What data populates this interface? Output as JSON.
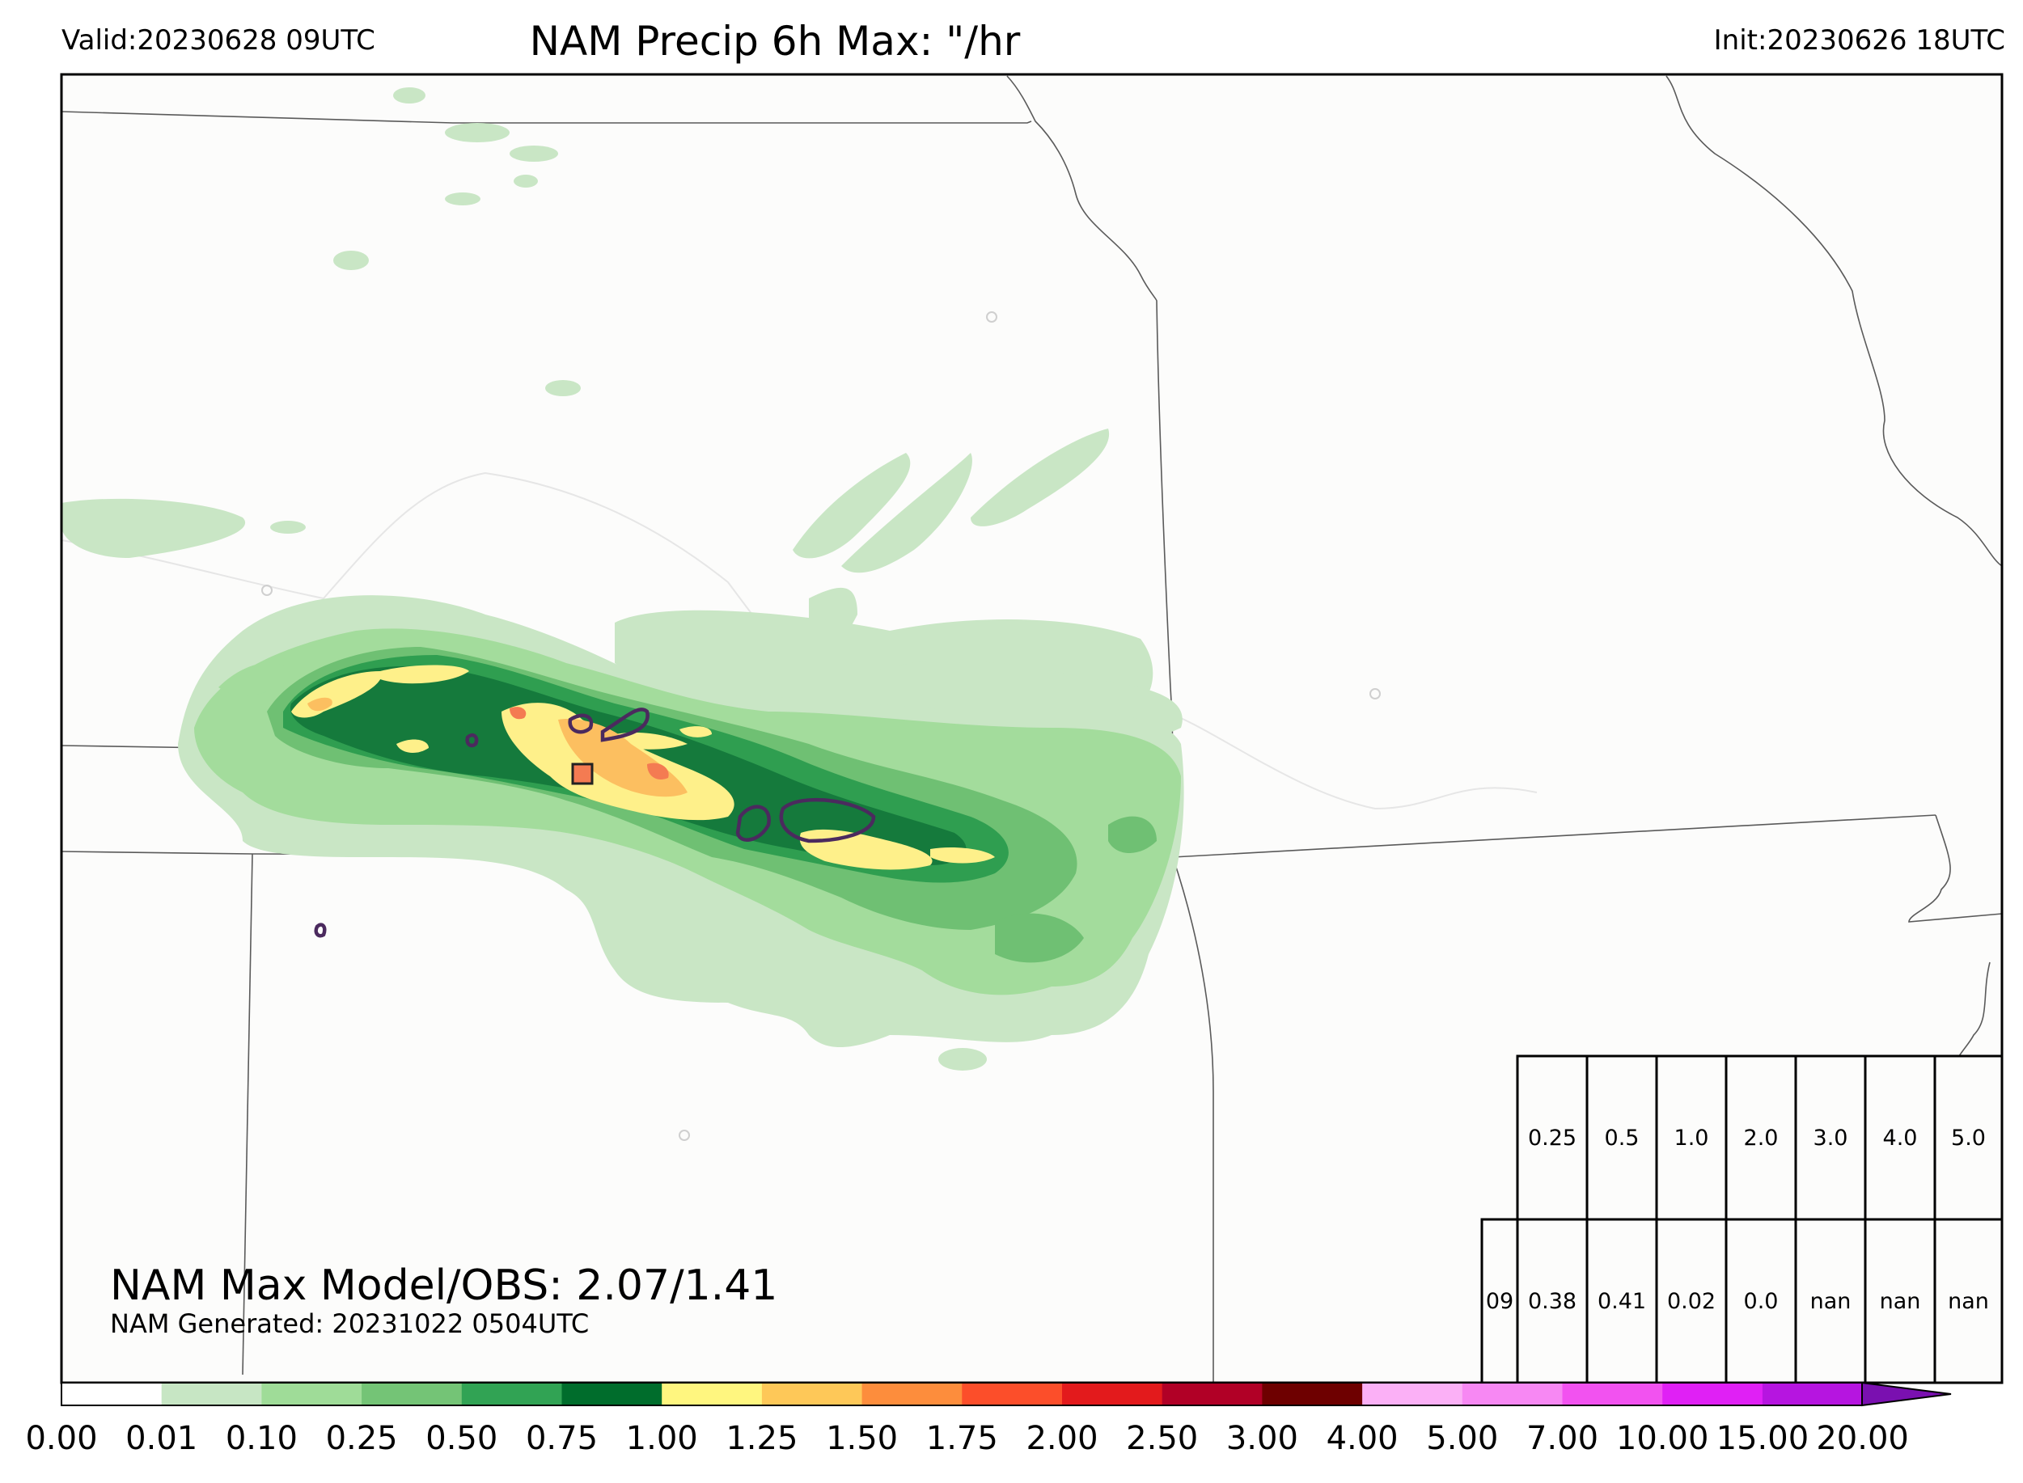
{
  "header": {
    "valid": "Valid:20230628 09UTC",
    "title": "NAM Precip 6h Max: \"/hr",
    "init": "Init:20230626 18UTC"
  },
  "annotations": {
    "max_model_obs": "NAM Max Model/OBS: 2.07/1.41",
    "generated": "NAM Generated: 20231022 0504UTC"
  },
  "table": {
    "thresholds": [
      "0.25",
      "0.5",
      "1.0",
      "2.0",
      "3.0",
      "4.0",
      "5.0"
    ],
    "row_label": "09",
    "values": [
      "0.38",
      "0.41",
      "0.02",
      "0.0",
      "nan",
      "nan",
      "nan"
    ]
  },
  "colorbar": {
    "ticks": [
      "0.00",
      "0.01",
      "0.10",
      "0.25",
      "0.50",
      "0.75",
      "1.00",
      "1.25",
      "1.50",
      "1.75",
      "2.00",
      "2.50",
      "3.00",
      "4.00",
      "5.00",
      "7.00",
      "10.00",
      "15.00",
      "20.00"
    ],
    "colors": [
      "#ffffff",
      "#c7e6c4",
      "#9fdc98",
      "#74c476",
      "#31a354",
      "#006d2c",
      "#fff67f",
      "#fec858",
      "#fd8d3c",
      "#fc4e2a",
      "#e31a1c",
      "#b10026",
      "#6e0000",
      "#fbb0f6",
      "#f788f3",
      "#f252f0",
      "#e020f5",
      "#b615e0",
      "#8a10c8"
    ]
  },
  "map_colors": {
    "background": "#fcfcfb",
    "light_green": "#c9e6c5",
    "mid_green": "#a3dc9c",
    "green": "#6fc073",
    "dark_green": "#2f9e50",
    "darkest_green": "#157a3c",
    "yellow": "#fef08a",
    "orange": "#fcbf60",
    "red_orange": "#f47b52",
    "obs_contour": "#4b2a5e"
  }
}
